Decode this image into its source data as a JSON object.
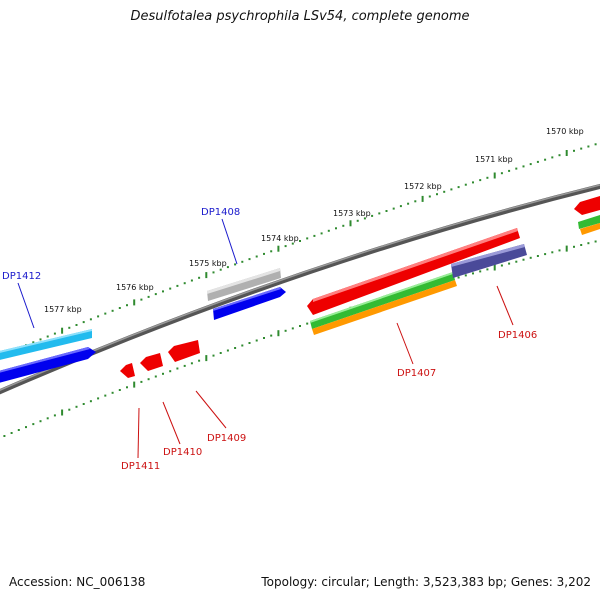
{
  "title": "Desulfotalea psychrophila LSv54, complete genome",
  "accession": "Accession: NC_006138",
  "summary": "Topology: circular; Length: 3,523,383 bp; Genes: 3,202",
  "colors": {
    "backbone": "#707070",
    "tick_dot": "#2f8a2f",
    "label_forward": "#1a1acc",
    "label_reverse": "#cc1111",
    "gene_red": "#ee0000",
    "gene_blue": "#0000ee",
    "gene_cyan": "#22bbee",
    "gene_gray": "#b0b0b0",
    "gene_green": "#33bb33",
    "gene_orange": "#ff9900",
    "gene_navy": "#4a4a99"
  },
  "scale_labels": [
    "1570 kbp",
    "1571 kbp",
    "1572 kbp",
    "1573 kbp",
    "1574 kbp",
    "1575 kbp",
    "1576 kbp",
    "1577 kbp"
  ],
  "gene_labels": {
    "forward": [
      "DP1408",
      "DP1412"
    ],
    "reverse": [
      "DP1406",
      "DP1407",
      "DP1409",
      "DP1410",
      "DP1411"
    ]
  }
}
